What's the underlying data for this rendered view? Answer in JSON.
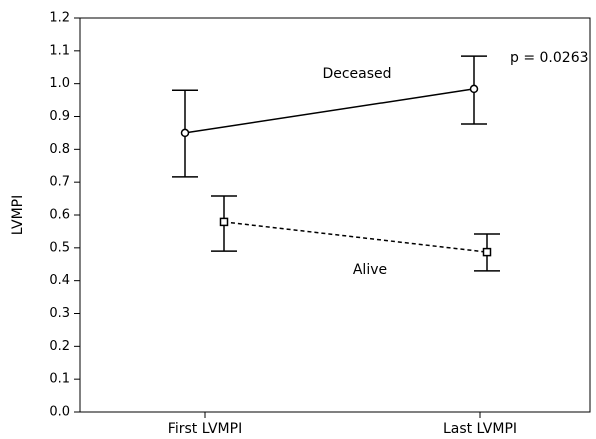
{
  "chart_data": {
    "type": "line",
    "y_label": "LVMPI",
    "categories": [
      "First LVMPI",
      "Last LVMPI"
    ],
    "series": [
      {
        "name": "Deceased",
        "color": "#000000",
        "dash": false,
        "marker": "circle",
        "values": [
          0.85,
          0.984
        ],
        "upper": [
          0.98,
          1.084
        ],
        "lower": [
          0.716,
          0.877
        ]
      },
      {
        "name": "Alive",
        "color": "#000000",
        "dash": true,
        "marker": "square",
        "values": [
          0.579,
          0.487
        ],
        "upper": [
          0.658,
          0.542
        ],
        "lower": [
          0.49,
          0.43
        ]
      }
    ],
    "annotation": "p = 0.0263",
    "ylim": [
      0,
      1.2
    ],
    "yticks": [
      {
        "value": 0,
        "label": "0.0"
      },
      0.1,
      0.2,
      0.3,
      0.4,
      0.5,
      0.6,
      0.7,
      0.8,
      0.9,
      {
        "value": 1,
        "label": "1.0"
      },
      1.1,
      1.2
    ]
  }
}
